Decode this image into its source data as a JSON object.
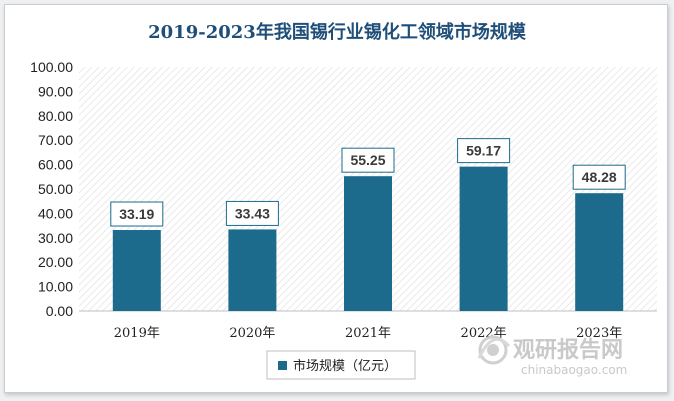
{
  "chart_data": {
    "type": "bar",
    "title": "2019-2023年我国锡行业锡化工领域市场规模",
    "categories": [
      "2019年",
      "2020年",
      "2021年",
      "2022年",
      "2023年"
    ],
    "series": [
      {
        "name": "市场规模（亿元）",
        "values": [
          33.19,
          33.43,
          55.25,
          59.17,
          48.28
        ]
      }
    ],
    "data_labels": [
      "33.19",
      "33.43",
      "55.25",
      "59.17",
      "48.28"
    ],
    "ylim": [
      0,
      100
    ],
    "yticks": [
      "0.00",
      "10.00",
      "20.00",
      "30.00",
      "40.00",
      "50.00",
      "60.00",
      "70.00",
      "80.00",
      "90.00",
      "100.00"
    ],
    "xlabel": "",
    "ylabel": "",
    "grid": false,
    "legend_position": "bottom",
    "colors": {
      "bar": "#1c6a8c",
      "title": "#1f4e79",
      "plot_hatch": "#d9d9d9",
      "label_border": "#1c6a8c"
    }
  },
  "watermark": {
    "name": "观研报告网",
    "url": "chinabaogao.com"
  }
}
